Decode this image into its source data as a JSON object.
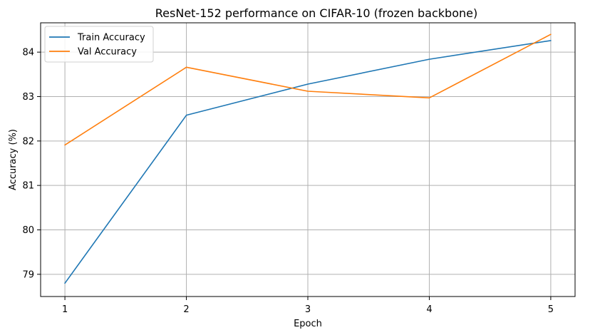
{
  "chart_data": {
    "type": "line",
    "title": "ResNet-152 performance on CIFAR-10 (frozen backbone)",
    "xlabel": "Epoch",
    "ylabel": "Accuracy (%)",
    "x": [
      1,
      2,
      3,
      4,
      5
    ],
    "xticks": [
      "1",
      "2",
      "3",
      "4",
      "5"
    ],
    "yticks": [
      79,
      80,
      81,
      82,
      83,
      84
    ],
    "ytick_labels": [
      "79",
      "80",
      "81",
      "82",
      "83",
      "84"
    ],
    "xlim": [
      0.8,
      5.2
    ],
    "ylim": [
      78.5,
      84.66
    ],
    "grid": true,
    "legend_position": "top-left",
    "series": [
      {
        "name": "Train Accuracy",
        "color": "#1f77b4",
        "values": [
          78.8,
          82.58,
          83.28,
          83.84,
          84.26
        ]
      },
      {
        "name": "Val Accuracy",
        "color": "#ff7f0e",
        "values": [
          81.91,
          83.66,
          83.12,
          82.97,
          84.4
        ]
      }
    ]
  }
}
